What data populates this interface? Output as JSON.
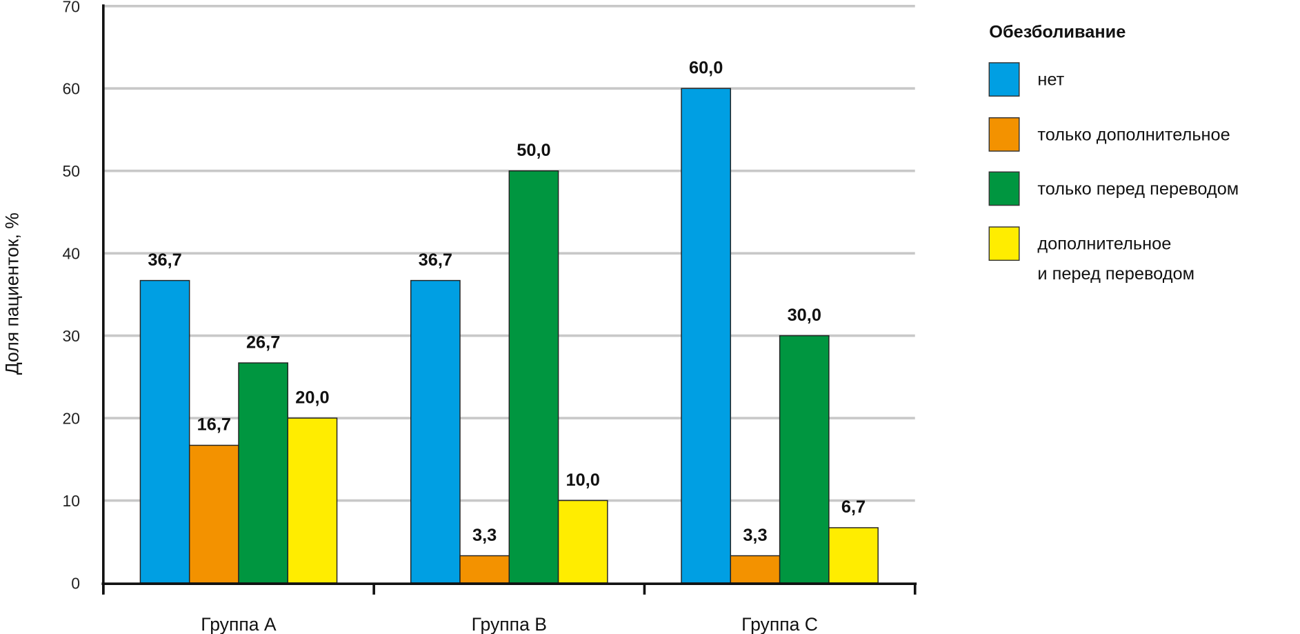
{
  "chart_data": {
    "type": "bar",
    "categories": [
      "Группа A",
      "Группа B",
      "Группа C"
    ],
    "ylabel": "Доля пациенток, %",
    "xlabel": "",
    "ylim": [
      0,
      70
    ],
    "yticks": [
      "0",
      "10",
      "20",
      "30",
      "40",
      "50",
      "60",
      "70"
    ],
    "grid": true,
    "legend_title": "Обезболивание",
    "legend_position": "right",
    "series": [
      {
        "name": "нет",
        "color": "#009FE3",
        "values": [
          36.7,
          36.7,
          60.0
        ],
        "labels": [
          "36,7",
          "36,7",
          "60,0"
        ]
      },
      {
        "name": "только дополнительное",
        "color": "#F39200",
        "values": [
          16.7,
          3.3,
          3.3
        ],
        "labels": [
          "16,7",
          "3,3",
          "3,3"
        ]
      },
      {
        "name": "только перед переводом",
        "color": "#009640",
        "values": [
          26.7,
          50.0,
          30.0
        ],
        "labels": [
          "26,7",
          "50,0",
          "30,0"
        ]
      },
      {
        "name": "дополнительное и перед переводом",
        "name_lines": [
          "дополнительное",
          "и перед переводом"
        ],
        "color": "#FFED00",
        "values": [
          20.0,
          10.0,
          6.7
        ],
        "labels": [
          "20,0",
          "10,0",
          "6,7"
        ]
      }
    ]
  }
}
